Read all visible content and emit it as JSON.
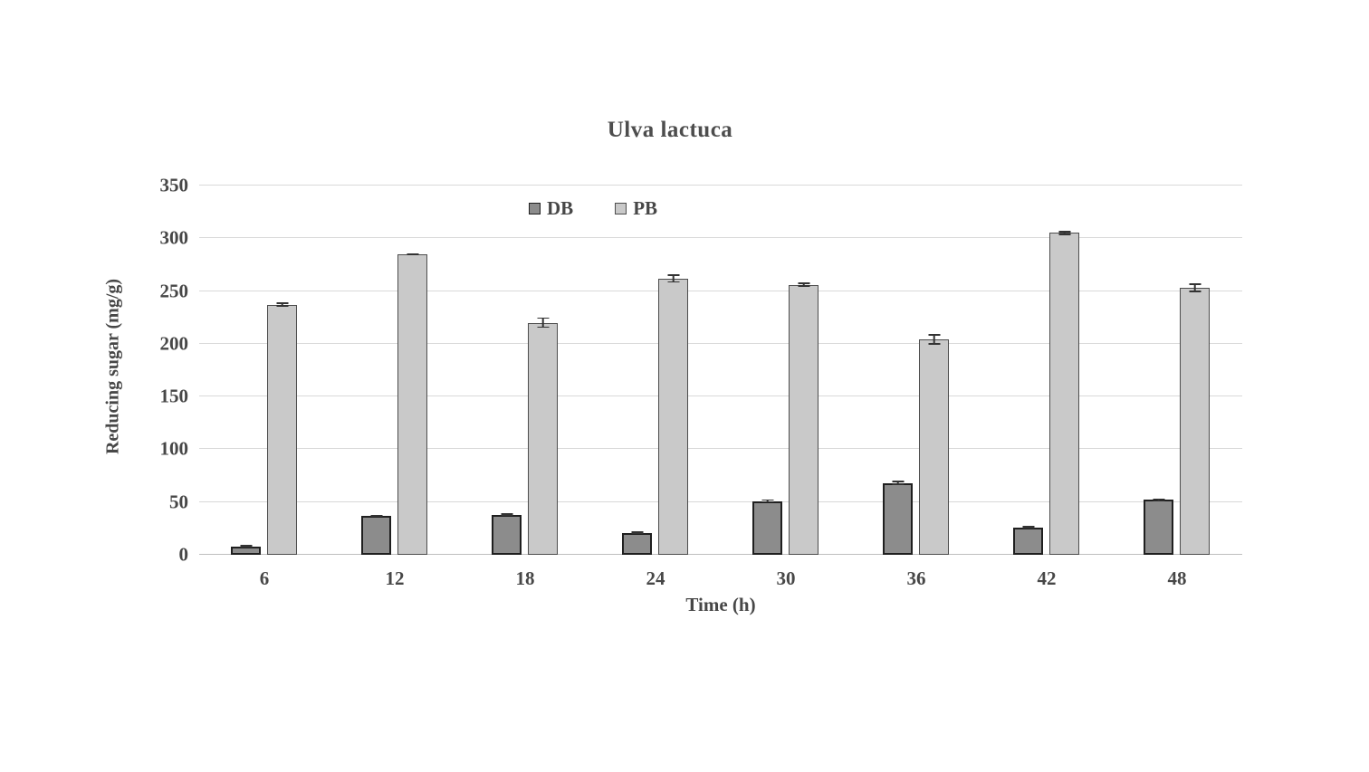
{
  "title": "Ulva lactuca",
  "chart_data": {
    "type": "bar",
    "title": "Ulva lactuca",
    "xlabel": "Time (h)",
    "ylabel": "Reducing sugar (mg/g)",
    "categories": [
      "6",
      "12",
      "18",
      "24",
      "30",
      "36",
      "42",
      "48"
    ],
    "series": [
      {
        "name": "DB",
        "values": [
          8,
          37,
          38,
          21,
          51,
          68,
          26,
          52
        ],
        "errors": [
          1.5,
          1,
          1.5,
          1,
          1.5,
          2,
          1.5,
          1.5
        ],
        "fill": "#8c8c8c",
        "border": "#1f1f1f"
      },
      {
        "name": "PB",
        "values": [
          237,
          285,
          220,
          262,
          256,
          204,
          305,
          253
        ],
        "errors": [
          2,
          1,
          5,
          4,
          2,
          5,
          2,
          4
        ],
        "fill": "#c9c9c9",
        "border": "#4d4d4d"
      }
    ],
    "ylim": [
      0,
      350
    ],
    "ytick_step": 50,
    "ytick_labels": [
      "0",
      "50",
      "100",
      "150",
      "200",
      "250",
      "300",
      "350"
    ],
    "grid": true,
    "legend_position": "top-center",
    "error_bars": true,
    "gridline_color": "#d9d9d9",
    "text_color": "#474747",
    "background_color": "#ffffff"
  }
}
